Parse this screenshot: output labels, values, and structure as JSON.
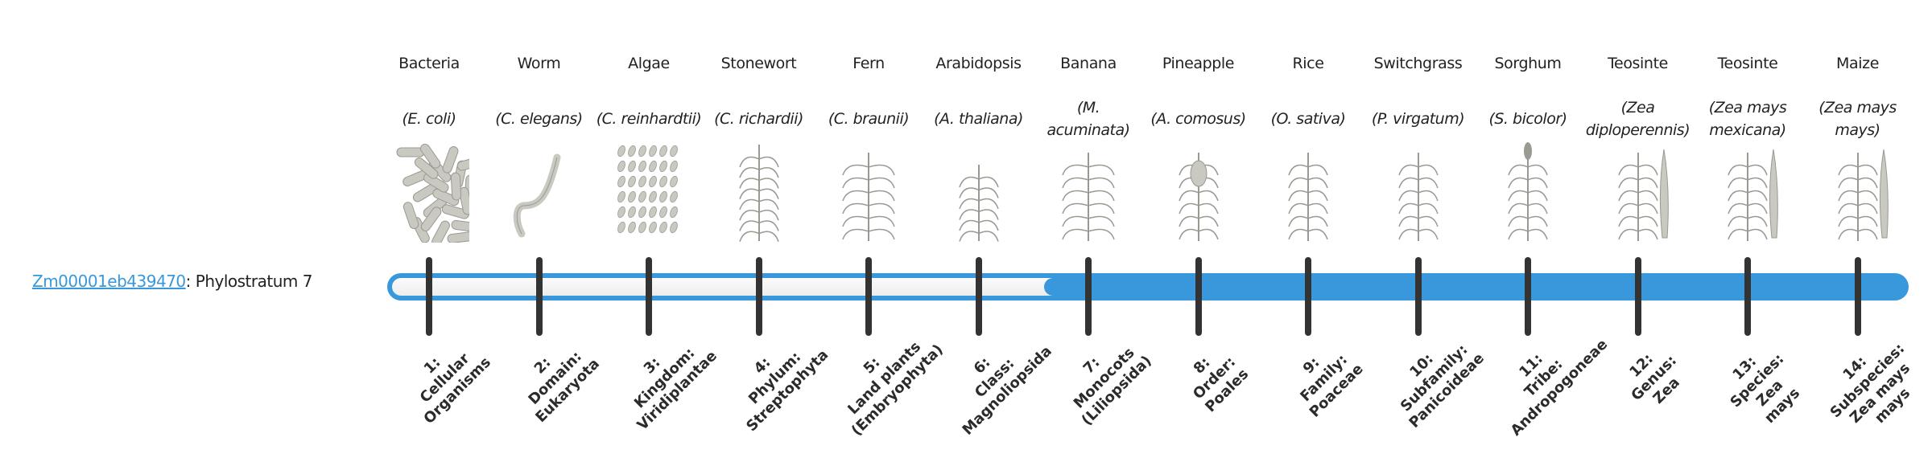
{
  "gene": {
    "id": "Zm00001eb439470",
    "suffix": ": Phylostratum 7"
  },
  "phylostratum": 7,
  "colors": {
    "accent": "#3898db",
    "tick": "#333333",
    "unfilled": "#f3f3f3"
  },
  "organisms": [
    {
      "common": "Bacteria",
      "scientific": "(E. coli)",
      "icon": "bacteria-illustration"
    },
    {
      "common": "Worm",
      "scientific": "(C. elegans)",
      "icon": "worm-illustration"
    },
    {
      "common": "Algae",
      "scientific": "(C. reinhardtii)",
      "icon": "algae-illustration"
    },
    {
      "common": "Stonewort",
      "scientific": "(C. richardii)",
      "icon": "stonewort-illustration"
    },
    {
      "common": "Fern",
      "scientific": "(C. braunii)",
      "icon": "fern-illustration"
    },
    {
      "common": "Arabidopsis",
      "scientific": "(A. thaliana)",
      "icon": "arabidopsis-illustration"
    },
    {
      "common": "Banana",
      "scientific": "(M. acuminata)",
      "icon": "banana-illustration"
    },
    {
      "common": "Pineapple",
      "scientific": "(A. comosus)",
      "icon": "pineapple-illustration"
    },
    {
      "common": "Rice",
      "scientific": "(O. sativa)",
      "icon": "rice-illustration"
    },
    {
      "common": "Switchgrass",
      "scientific": "(P. virgatum)",
      "icon": "switchgrass-illustration"
    },
    {
      "common": "Sorghum",
      "scientific": "(S. bicolor)",
      "icon": "sorghum-illustration"
    },
    {
      "common": "Teosinte",
      "scientific": "(Zea diploperennis)",
      "icon": "teosinte-illustration"
    },
    {
      "common": "Teosinte",
      "scientific": "(Zea mays mexicana)",
      "icon": "teosinte-illustration"
    },
    {
      "common": "Maize",
      "scientific": "(Zea mays mays)",
      "icon": "maize-illustration"
    }
  ],
  "strata": [
    "1:\nCellular\nOrganisms",
    "2:\nDomain:\nEukaryota",
    "3:\nKingdom:\nViridiplantae",
    "4:\nPhylum:\nStreptophyta",
    "5:\nLand plants\n(Embryophyta)",
    "6:\nClass:\nMagnoliopsida",
    "7:\nMonocots\n(Liliopsida)",
    "8:\nOrder:\nPoales",
    "9:\nFamily:\nPoaceae",
    "10:\nSubfamily:\nPanicoideae",
    "11:\nTribe:\nAndropogoneae",
    "12:\nGenus:\nZea",
    "13:\nSpecies:\nZea\nmays",
    "14:\nSubspecies:\nZea mays\nmays"
  ]
}
